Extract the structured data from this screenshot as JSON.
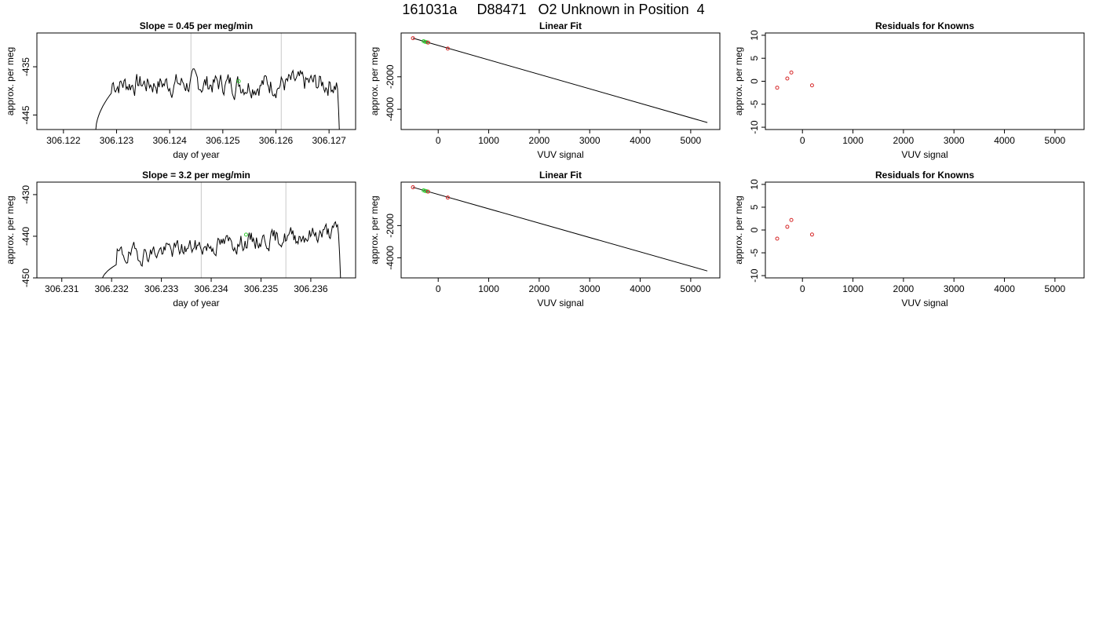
{
  "figure_title": "161031a     D88471   O2 Unknown in Position  4",
  "chart_data": [
    {
      "type": "line",
      "title": "Slope =  0.45  per meg/min",
      "xlabel": "day of year",
      "ylabel": "approx. per meg",
      "xlim": [
        306.1215,
        306.1275
      ],
      "ylim": [
        -448,
        -428
      ],
      "xticks": [
        306.122,
        306.123,
        306.124,
        306.125,
        306.126,
        306.127
      ],
      "xtick_labels": [
        "306.122",
        "306.123",
        "306.124",
        "306.125",
        "306.126",
        "306.127"
      ],
      "yticks": [
        -435,
        -445
      ],
      "ytick_labels": [
        "-435",
        "-445"
      ],
      "vlines": [
        306.1244,
        306.1261
      ],
      "trace": {
        "x_start": 306.1226,
        "x_end": 306.1272,
        "y_start": -449,
        "y_end": -450,
        "plateau_level": -438.5,
        "plateau_begin": 306.1229,
        "drop_at": 306.12715,
        "amplitude": 1.6,
        "trend": 0.0,
        "seed": 7,
        "n": 230
      },
      "points": [
        {
          "x": 306.1253,
          "y": -438.0,
          "color": "#33cc33"
        }
      ],
      "grid": false
    },
    {
      "type": "scatter",
      "title": "Linear Fit",
      "xlabel": "VUV signal",
      "ylabel": "approx. per meg",
      "xlim": [
        -734,
        5577
      ],
      "ylim": [
        -5250,
        700
      ],
      "xticks": [
        0,
        1000,
        2000,
        3000,
        4000,
        5000
      ],
      "xtick_labels": [
        "0",
        "1000",
        "2000",
        "3000",
        "4000",
        "5000"
      ],
      "yticks": [
        -2000,
        -4000
      ],
      "ytick_labels": [
        "-2000",
        "-4000"
      ],
      "fit_line": [
        [
          -500,
          380
        ],
        [
          5330,
          -4820
        ]
      ],
      "points": [
        {
          "x": -500,
          "y": 380,
          "color": "#d62728"
        },
        {
          "x": -290,
          "y": 190,
          "color": "#33cc33"
        },
        {
          "x": -260,
          "y": 155,
          "color": "#33cc33"
        },
        {
          "x": -230,
          "y": 130,
          "color": "#33cc33"
        },
        {
          "x": -200,
          "y": 110,
          "color": "#d62728"
        },
        {
          "x": 190,
          "y": -260,
          "color": "#d62728"
        }
      ],
      "grid": false
    },
    {
      "type": "scatter",
      "title": "Residuals for Knowns",
      "xlabel": "VUV signal",
      "ylabel": "approx. per meg",
      "xlim": [
        -734,
        5577
      ],
      "ylim": [
        -10.5,
        10.5
      ],
      "xticks": [
        0,
        1000,
        2000,
        3000,
        4000,
        5000
      ],
      "xtick_labels": [
        "0",
        "1000",
        "2000",
        "3000",
        "4000",
        "5000"
      ],
      "yticks": [
        10,
        5,
        0,
        -5,
        -10
      ],
      "ytick_labels": [
        "10",
        "5",
        "0",
        "-5",
        "-10"
      ],
      "points": [
        {
          "x": -500,
          "y": -1.4,
          "color": "#d62728"
        },
        {
          "x": -300,
          "y": 0.6,
          "color": "#d62728"
        },
        {
          "x": -220,
          "y": 1.9,
          "color": "#d62728"
        },
        {
          "x": 190,
          "y": -0.9,
          "color": "#d62728"
        }
      ],
      "grid": false
    },
    {
      "type": "line",
      "title": "Slope =  3.2  per meg/min",
      "xlabel": "day of year",
      "ylabel": "approx. per meg",
      "xlim": [
        306.2305,
        306.2369
      ],
      "ylim": [
        -450,
        -427
      ],
      "xticks": [
        306.231,
        306.232,
        306.233,
        306.234,
        306.235,
        306.236
      ],
      "xtick_labels": [
        "306.231",
        "306.232",
        "306.233",
        "306.234",
        "306.235",
        "306.236"
      ],
      "yticks": [
        -430,
        -440,
        -450
      ],
      "ytick_labels": [
        "-430",
        "-440",
        "-450"
      ],
      "vlines": [
        306.2338,
        306.2355
      ],
      "trace": {
        "x_start": 306.2318,
        "x_end": 306.2366,
        "y_start": -451,
        "y_end": -451,
        "plateau_level": -441.8,
        "plateau_begin": 306.2321,
        "drop_at": 306.23655,
        "amplitude": 1.5,
        "trend": 6.0,
        "seed": 19,
        "n": 230
      },
      "points": [
        {
          "x": 306.2347,
          "y": -439.6,
          "color": "#33cc33"
        }
      ],
      "grid": false
    },
    {
      "type": "scatter",
      "title": "Linear Fit",
      "xlabel": "VUV signal",
      "ylabel": "approx. per meg",
      "xlim": [
        -734,
        5577
      ],
      "ylim": [
        -5250,
        700
      ],
      "xticks": [
        0,
        1000,
        2000,
        3000,
        4000,
        5000
      ],
      "xtick_labels": [
        "0",
        "1000",
        "2000",
        "3000",
        "4000",
        "5000"
      ],
      "yticks": [
        -2000,
        -4000
      ],
      "ytick_labels": [
        "-2000",
        "-4000"
      ],
      "fit_line": [
        [
          -500,
          380
        ],
        [
          5330,
          -4820
        ]
      ],
      "points": [
        {
          "x": -500,
          "y": 380,
          "color": "#d62728"
        },
        {
          "x": -290,
          "y": 190,
          "color": "#33cc33"
        },
        {
          "x": -260,
          "y": 155,
          "color": "#33cc33"
        },
        {
          "x": -230,
          "y": 130,
          "color": "#33cc33"
        },
        {
          "x": -200,
          "y": 110,
          "color": "#d62728"
        },
        {
          "x": 190,
          "y": -260,
          "color": "#d62728"
        }
      ],
      "grid": false
    },
    {
      "type": "scatter",
      "title": "Residuals for Knowns",
      "xlabel": "VUV signal",
      "ylabel": "approx. per meg",
      "xlim": [
        -734,
        5577
      ],
      "ylim": [
        -10.5,
        10.5
      ],
      "xticks": [
        0,
        1000,
        2000,
        3000,
        4000,
        5000
      ],
      "xtick_labels": [
        "0",
        "1000",
        "2000",
        "3000",
        "4000",
        "5000"
      ],
      "yticks": [
        10,
        5,
        0,
        -5,
        -10
      ],
      "ytick_labels": [
        "10",
        "5",
        "0",
        "-5",
        "-10"
      ],
      "points": [
        {
          "x": -500,
          "y": -1.9,
          "color": "#d62728"
        },
        {
          "x": -300,
          "y": 0.7,
          "color": "#d62728"
        },
        {
          "x": -220,
          "y": 2.2,
          "color": "#d62728"
        },
        {
          "x": 190,
          "y": -1.0,
          "color": "#d62728"
        }
      ],
      "grid": false
    }
  ]
}
